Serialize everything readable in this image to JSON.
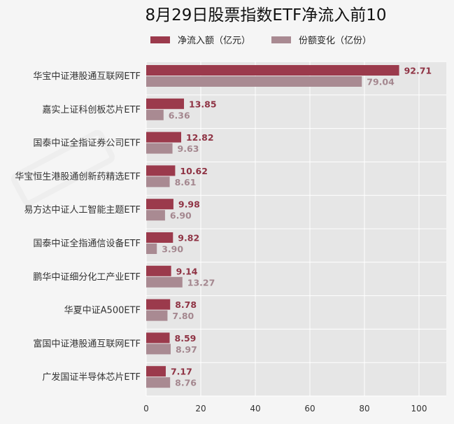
{
  "chart_data": {
    "type": "bar",
    "orientation": "horizontal",
    "title": "8月29日股票指数ETF净流入前10",
    "categories": [
      "华宝中证港股通互联网ETF",
      "嘉实上证科创板芯片ETF",
      "国泰中证全指证券公司ETF",
      "华宝恒生港股通创新药精选ETF",
      "易方达中证人工智能主题ETF",
      "国泰中证全指通信设备ETF",
      "鹏华中证细分化工产业ETF",
      "华夏中证A500ETF",
      "富国中证港股通互联网ETF",
      "广发国证半导体芯片ETF"
    ],
    "series": [
      {
        "name": "净流入额（亿元）",
        "color": "#9b3a4c",
        "values": [
          92.71,
          13.85,
          12.82,
          10.62,
          9.98,
          9.82,
          9.14,
          8.78,
          8.59,
          7.17
        ],
        "labels": [
          "92.71",
          "13.85",
          "12.82",
          "10.62",
          "9.98",
          "9.82",
          "9.14",
          "8.78",
          "8.59",
          "7.17"
        ]
      },
      {
        "name": "份额变化（亿份）",
        "color": "#a98a92",
        "values": [
          79.04,
          6.36,
          9.63,
          8.61,
          6.9,
          3.9,
          13.27,
          7.8,
          8.97,
          8.76
        ],
        "labels": [
          "79.04",
          "6.36",
          "9.63",
          "8.61",
          "6.90",
          "3.90",
          "13.27",
          "7.80",
          "8.97",
          "8.76"
        ]
      }
    ],
    "xlim": [
      0,
      110
    ],
    "xticks": [
      0,
      20,
      40,
      60,
      80,
      100
    ],
    "xtick_labels": [
      "0",
      "20",
      "40",
      "60",
      "80",
      "100"
    ],
    "legend_position": "top",
    "grid": true,
    "plot_background": "#e6e6e6"
  }
}
